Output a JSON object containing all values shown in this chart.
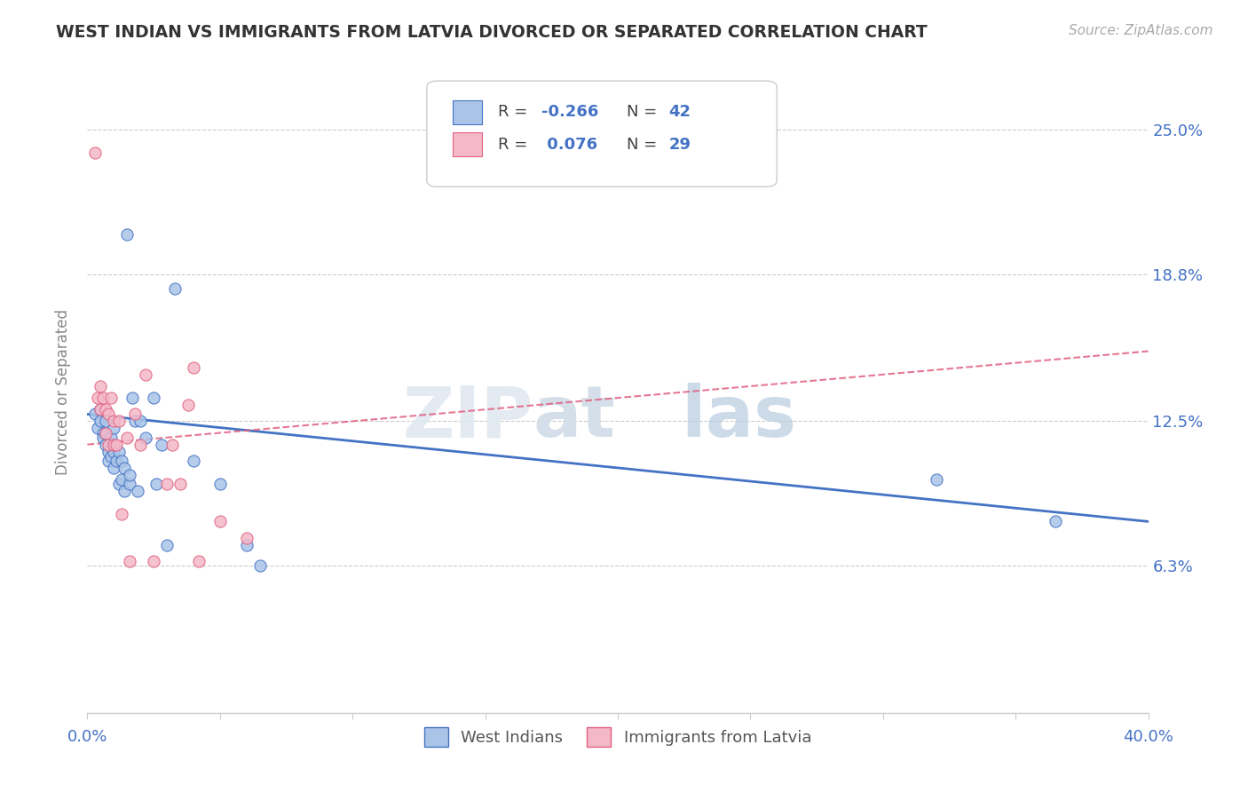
{
  "title": "WEST INDIAN VS IMMIGRANTS FROM LATVIA DIVORCED OR SEPARATED CORRELATION CHART",
  "source_text": "Source: ZipAtlas.com",
  "ylabel": "Divorced or Separated",
  "xmin": 0.0,
  "xmax": 0.4,
  "ymin": 0.0,
  "ymax": 0.275,
  "yticks": [
    0.0,
    0.063,
    0.125,
    0.188,
    0.25
  ],
  "ytick_labels": [
    "",
    "6.3%",
    "12.5%",
    "18.8%",
    "25.0%"
  ],
  "grid_color": "#cccccc",
  "background_color": "#ffffff",
  "west_indians_color": "#aac4e8",
  "latvia_color": "#f4b8c8",
  "west_indians_line_color": "#4472c4",
  "latvia_line_color": "#e06080",
  "r_west": -0.266,
  "n_west": 42,
  "r_latvia": 0.076,
  "n_latvia": 29,
  "legend_label_west": "West Indians",
  "legend_label_latvia": "Immigrants from Latvia",
  "west_indians_x": [
    0.003,
    0.004,
    0.005,
    0.005,
    0.006,
    0.006,
    0.007,
    0.007,
    0.007,
    0.008,
    0.008,
    0.009,
    0.009,
    0.01,
    0.01,
    0.01,
    0.011,
    0.012,
    0.012,
    0.013,
    0.013,
    0.014,
    0.014,
    0.015,
    0.016,
    0.016,
    0.017,
    0.018,
    0.019,
    0.02,
    0.022,
    0.025,
    0.026,
    0.028,
    0.03,
    0.033,
    0.04,
    0.05,
    0.06,
    0.065,
    0.32,
    0.365
  ],
  "west_indians_y": [
    0.128,
    0.122,
    0.13,
    0.125,
    0.12,
    0.118,
    0.115,
    0.12,
    0.125,
    0.112,
    0.108,
    0.11,
    0.118,
    0.105,
    0.112,
    0.122,
    0.108,
    0.098,
    0.112,
    0.1,
    0.108,
    0.095,
    0.105,
    0.205,
    0.098,
    0.102,
    0.135,
    0.125,
    0.095,
    0.125,
    0.118,
    0.135,
    0.098,
    0.115,
    0.072,
    0.182,
    0.108,
    0.098,
    0.072,
    0.063,
    0.1,
    0.082
  ],
  "latvia_x": [
    0.003,
    0.004,
    0.005,
    0.005,
    0.006,
    0.007,
    0.007,
    0.008,
    0.008,
    0.009,
    0.01,
    0.01,
    0.011,
    0.012,
    0.013,
    0.015,
    0.016,
    0.018,
    0.02,
    0.022,
    0.025,
    0.03,
    0.032,
    0.035,
    0.038,
    0.04,
    0.042,
    0.05,
    0.06
  ],
  "latvia_y": [
    0.24,
    0.135,
    0.13,
    0.14,
    0.135,
    0.12,
    0.13,
    0.115,
    0.128,
    0.135,
    0.115,
    0.125,
    0.115,
    0.125,
    0.085,
    0.118,
    0.065,
    0.128,
    0.115,
    0.145,
    0.065,
    0.098,
    0.115,
    0.098,
    0.132,
    0.148,
    0.065,
    0.082,
    0.075
  ]
}
